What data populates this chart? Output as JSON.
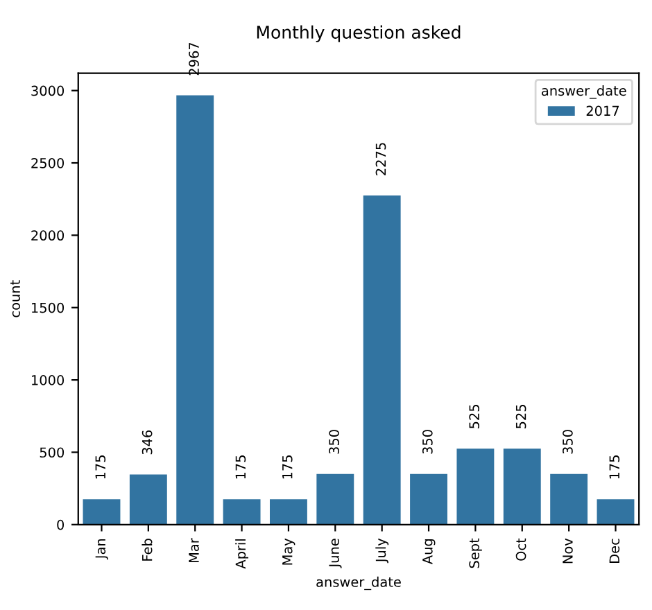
{
  "chart_data": {
    "type": "bar",
    "title": "Monthly question asked",
    "xlabel": "answer_date",
    "ylabel": "count",
    "legend_title": "answer_date",
    "categories": [
      "Jan",
      "Feb",
      "Mar",
      "April",
      "May",
      "June",
      "July",
      "Aug",
      "Sept",
      "Oct",
      "Nov",
      "Dec"
    ],
    "series": [
      {
        "name": "2017",
        "color": "#3274a1",
        "values": [
          175,
          346,
          2967,
          175,
          175,
          350,
          2275,
          350,
          525,
          525,
          350,
          175
        ]
      }
    ],
    "ylim": [
      0,
      3120
    ],
    "yticks": [
      0,
      500,
      1000,
      1500,
      2000,
      2500,
      3000
    ],
    "data_labels": true,
    "legend": "top right",
    "grid": false
  }
}
